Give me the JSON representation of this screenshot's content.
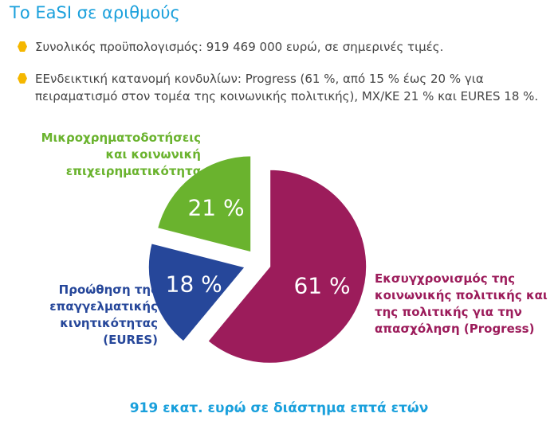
{
  "title": "Το EaSI σε αριθμούς",
  "bullets": [
    {
      "icon": "hexagon-bullet-icon",
      "text": "Συνολικός προϋπολογισμός: 919 469 000 ευρώ, σε σημερινές τιμές."
    },
    {
      "icon": "hexagon-bullet-icon",
      "text": "ΕΕνδεικτική κατανομή κονδυλίων: Progress (61 %, από 15 % έως 20 % για πειραματισμό στον τομέα της κοινωνικής πολιτικής), ΜΧ/ΚΕ 21 % και EURES 18 %."
    }
  ],
  "chart_data": {
    "type": "pie",
    "title": "",
    "slices": [
      {
        "name": "Εκσυγχρονισμός της κοινωνικής πολιτικής και της πολιτικής για την απασχόληση (Progress)",
        "value": 61,
        "label": "61 %",
        "color": "#9c1c5b"
      },
      {
        "name": "Προώθηση της επαγγελματικής κινητικότητας (EURES)",
        "value": 18,
        "label": "18 %",
        "color": "#26479a"
      },
      {
        "name": "Μικροχρηματοδοτήσεις και κοινωνική επιχειρηματικότητα",
        "value": 21,
        "label": "21 %",
        "color": "#6ab32e"
      }
    ],
    "legend": "labels beside slices",
    "caption": "919 εκατ. ευρώ σε διάστημα επτά ετών"
  }
}
